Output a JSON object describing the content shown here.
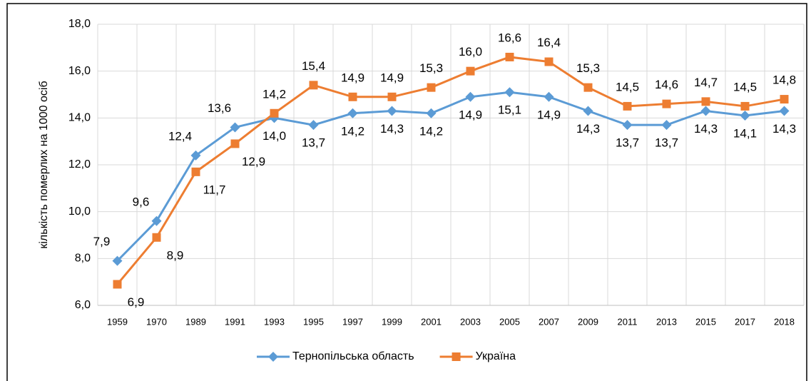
{
  "chart_data": {
    "type": "line",
    "y_axis_label": "кількість померлих на 1000 осіб",
    "categories": [
      "1959",
      "1970",
      "1989",
      "1991",
      "1993",
      "1995",
      "1997",
      "1999",
      "2001",
      "2003",
      "2005",
      "2007",
      "2009",
      "2011",
      "2013",
      "2015",
      "2017",
      "2018"
    ],
    "series": [
      {
        "name": "Тернопільська область",
        "color": "#5b9bd5",
        "marker": "diamond",
        "values": [
          7.9,
          9.6,
          12.4,
          13.6,
          14.0,
          13.7,
          14.2,
          14.3,
          14.2,
          14.9,
          15.1,
          14.9,
          14.3,
          13.7,
          13.7,
          14.3,
          14.1,
          14.3
        ],
        "value_labels": [
          "7,9",
          "9,6",
          "12,4",
          "13,6",
          "14,0",
          "13,7",
          "14,2",
          "14,3",
          "14,2",
          "14,9",
          "15,1",
          "14,9",
          "14,3",
          "13,7",
          "13,7",
          "14,3",
          "14,1",
          "14,3"
        ]
      },
      {
        "name": "Україна",
        "color": "#ed7d31",
        "marker": "square",
        "values": [
          6.9,
          8.9,
          11.7,
          12.9,
          14.2,
          15.4,
          14.9,
          14.9,
          15.3,
          16.0,
          16.6,
          16.4,
          15.3,
          14.5,
          14.6,
          14.7,
          14.5,
          14.8
        ],
        "value_labels": [
          "6,9",
          "8,9",
          "11,7",
          "12,9",
          "14,2",
          "15,4",
          "14,9",
          "14,9",
          "15,3",
          "16,0",
          "16,6",
          "16,4",
          "15,3",
          "14,5",
          "14,6",
          "14,7",
          "14,5",
          "14,8"
        ]
      }
    ],
    "ylim": [
      6,
      18
    ],
    "yticks": [
      {
        "value": 6,
        "label": "6,0"
      },
      {
        "value": 8,
        "label": "8,0"
      },
      {
        "value": 10,
        "label": "10,0"
      },
      {
        "value": 12,
        "label": "12,0"
      },
      {
        "value": 14,
        "label": "14,0"
      },
      {
        "value": 16,
        "label": "16,0"
      },
      {
        "value": 18,
        "label": "18,0"
      }
    ],
    "grid": true,
    "legend": "bottom"
  }
}
